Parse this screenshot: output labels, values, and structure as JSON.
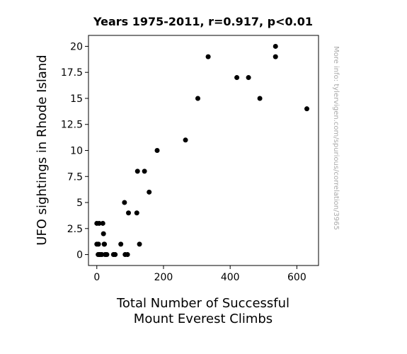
{
  "chart_data": {
    "type": "scatter",
    "title": "Years 1975-2011, r=0.917, p<0.01",
    "xlabel_lines": [
      "Total Number of Successful",
      "Mount Everest Climbs"
    ],
    "ylabel": "UFO sightings in Rhode Island",
    "watermark": "More info: tylervigen.com/spurious/correlation/3965",
    "xlim": [
      -25,
      665
    ],
    "ylim": [
      -1.05,
      21.05
    ],
    "xticks": [
      0,
      200,
      400,
      600
    ],
    "xtick_labels": [
      "0",
      "200",
      "400",
      "600"
    ],
    "yticks": [
      0,
      2.5,
      5,
      7.5,
      10,
      12.5,
      15,
      17.5,
      20
    ],
    "ytick_labels": [
      "0",
      "2.5",
      "5",
      "7.5",
      "10",
      "12.5",
      "15",
      "17.5",
      "20"
    ],
    "grid": false,
    "marker_color": "#000000",
    "points": [
      {
        "x": 0,
        "y": 3
      },
      {
        "x": 0,
        "y": 1
      },
      {
        "x": 4,
        "y": 0
      },
      {
        "x": 5,
        "y": 1
      },
      {
        "x": 7,
        "y": 3
      },
      {
        "x": 8,
        "y": 0
      },
      {
        "x": 10,
        "y": 0
      },
      {
        "x": 15,
        "y": 0
      },
      {
        "x": 18,
        "y": 3
      },
      {
        "x": 20,
        "y": 2
      },
      {
        "x": 22,
        "y": 1
      },
      {
        "x": 23,
        "y": 1
      },
      {
        "x": 25,
        "y": 0
      },
      {
        "x": 30,
        "y": 0
      },
      {
        "x": 50,
        "y": 0
      },
      {
        "x": 55,
        "y": 0
      },
      {
        "x": 72,
        "y": 1
      },
      {
        "x": 83,
        "y": 5
      },
      {
        "x": 85,
        "y": 0
      },
      {
        "x": 92,
        "y": 0
      },
      {
        "x": 95,
        "y": 4
      },
      {
        "x": 120,
        "y": 4
      },
      {
        "x": 122,
        "y": 8
      },
      {
        "x": 128,
        "y": 1
      },
      {
        "x": 143,
        "y": 8
      },
      {
        "x": 157,
        "y": 6
      },
      {
        "x": 181,
        "y": 10
      },
      {
        "x": 266,
        "y": 11
      },
      {
        "x": 303,
        "y": 15
      },
      {
        "x": 334,
        "y": 19
      },
      {
        "x": 420,
        "y": 17
      },
      {
        "x": 455,
        "y": 17
      },
      {
        "x": 489,
        "y": 15
      },
      {
        "x": 536,
        "y": 20
      },
      {
        "x": 536,
        "y": 19
      },
      {
        "x": 630,
        "y": 14
      }
    ]
  }
}
